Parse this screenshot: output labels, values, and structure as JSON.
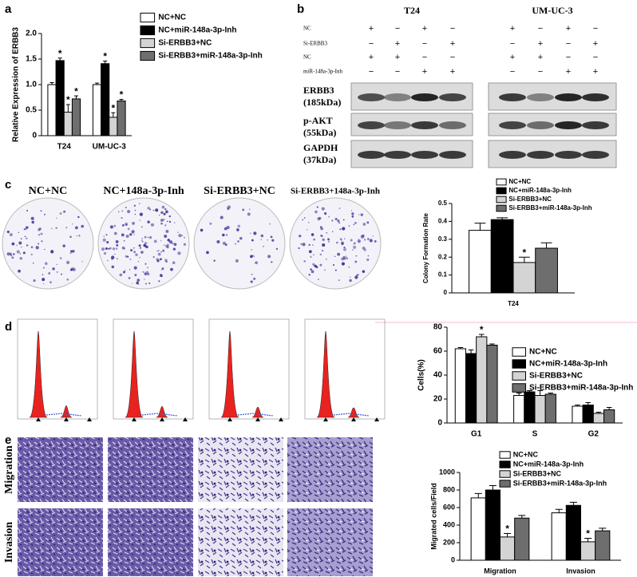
{
  "figure": {
    "panel_letters": [
      "a",
      "b",
      "c",
      "d",
      "e"
    ],
    "blot": {
      "cell_lines": [
        "T24",
        "UM-UC-3"
      ],
      "treatments": [
        {
          "name": "NC",
          "signs": [
            "+",
            "−",
            "+",
            "−"
          ]
        },
        {
          "name": "Si-ERBB3",
          "signs": [
            "−",
            "+",
            "−",
            "+"
          ]
        },
        {
          "name": "NC",
          "signs": [
            "+",
            "+",
            "−",
            "−"
          ]
        },
        {
          "name": "miR-148a-3p-Inh",
          "signs": [
            "−",
            "−",
            "+",
            "+"
          ]
        }
      ],
      "bands": [
        {
          "name": "ERBB3",
          "size": "(185kDa)"
        },
        {
          "name": "p-AKT",
          "size": "(55kDa)"
        },
        {
          "name": "GAPDH",
          "size": "(37kDa)"
        }
      ]
    },
    "colony_labels": [
      "NC+NC",
      "NC+148a-3p-Inh",
      "Si-ERBB3+NC",
      "Si-ERBB3+148a-3p-Inh"
    ],
    "assay_labels": [
      "Migration",
      "Invasion"
    ]
  },
  "chart_data": [
    {
      "type": "bar",
      "ylabel": "Relative Expression of ERBB3",
      "categories": [
        "T24",
        "UM-UC-3"
      ],
      "ylim": [
        0,
        2
      ],
      "yticks": [
        0,
        0.5,
        {
          "value": 1,
          "label": "1.0"
        },
        1.5,
        {
          "value": 2,
          "label": "2.0"
        }
      ],
      "series": [
        {
          "name": "NC+NC",
          "color": "#ffffff",
          "values": [
            1,
            1
          ],
          "errors": [
            0.04,
            0.03
          ]
        },
        {
          "name": "NC+miR-148a-3p-Inh",
          "color": "#000000",
          "values": [
            1.47,
            1.41
          ],
          "errors": [
            0.05,
            0.05
          ],
          "labels": [
            "*",
            "*"
          ]
        },
        {
          "name": "Si-ERBB3+NC",
          "color": "#d4d4d4",
          "values": [
            0.46,
            0.36
          ],
          "errors": [
            0.15,
            0.09
          ],
          "labels": [
            "*",
            "*"
          ]
        },
        {
          "name": "Si-ERBB3+miR-148a-3p-Inh",
          "color": "#6e6e6e",
          "values": [
            0.72,
            0.68
          ],
          "errors": [
            0.06,
            0.03
          ],
          "labels": [
            "*",
            "*"
          ]
        }
      ]
    },
    {
      "type": "bar",
      "ylabel": "Colony Formation Rate",
      "categories": [
        "T24"
      ],
      "ylim": [
        0,
        0.5
      ],
      "yticks": [
        0,
        0.1,
        0.2,
        0.3,
        0.4,
        0.5
      ],
      "series": [
        {
          "name": "NC+NC",
          "color": "#ffffff",
          "values": [
            0.35
          ],
          "errors": [
            0.04
          ]
        },
        {
          "name": "NC+miR-148a-3p-Inh",
          "color": "#000000",
          "values": [
            0.41
          ],
          "errors": [
            0.01
          ]
        },
        {
          "name": "Si-ERBB3+NC",
          "color": "#d4d4d4",
          "values": [
            0.17
          ],
          "errors": [
            0.03
          ],
          "labels": [
            "*"
          ]
        },
        {
          "name": "Si-ERBB3+miR-148a-3p-Inh",
          "color": "#6e6e6e",
          "values": [
            0.25
          ],
          "errors": [
            0.03
          ]
        }
      ]
    },
    {
      "type": "bar",
      "ylabel": "Cells(%)",
      "categories": [
        "G1",
        "S",
        "G2"
      ],
      "ylim": [
        0,
        80
      ],
      "yticks": [
        0,
        20,
        40,
        60,
        80
      ],
      "series": [
        {
          "name": "NC+NC",
          "color": "#ffffff",
          "values": [
            62,
            23,
            14
          ],
          "errors": [
            1,
            2,
            1
          ]
        },
        {
          "name": "NC+miR-148a-3p-Inh",
          "color": "#000000",
          "values": [
            58,
            26,
            15
          ],
          "errors": [
            3,
            1,
            2
          ]
        },
        {
          "name": "Si-ERBB3+NC",
          "color": "#d4d4d4",
          "values": [
            72,
            23,
            8
          ],
          "errors": [
            2,
            4,
            1
          ],
          "labels": [
            "*",
            null,
            null
          ]
        },
        {
          "name": "Si-ERBB3+miR-148a-3p-Inh",
          "color": "#6e6e6e",
          "values": [
            65,
            24,
            11
          ],
          "errors": [
            1,
            1,
            2
          ]
        }
      ]
    },
    {
      "type": "bar",
      "ylabel": "Migrated cells/Field",
      "categories": [
        "Migration",
        "Invasion"
      ],
      "ylim": [
        0,
        1000
      ],
      "yticks": [
        0,
        200,
        400,
        600,
        800,
        1000
      ],
      "series": [
        {
          "name": "NC+NC",
          "color": "#ffffff",
          "values": [
            710,
            540
          ],
          "errors": [
            50,
            40
          ]
        },
        {
          "name": "NC+miR-148a-3p-Inh",
          "color": "#000000",
          "values": [
            800,
            625
          ],
          "errors": [
            50,
            35
          ]
        },
        {
          "name": "Si-ERBB3+NC",
          "color": "#d4d4d4",
          "values": [
            265,
            210
          ],
          "errors": [
            40,
            40
          ],
          "labels": [
            "*",
            "*"
          ]
        },
        {
          "name": "Si-ERBB3+miR-148a-3p-Inh",
          "color": "#6e6e6e",
          "values": [
            480,
            335
          ],
          "errors": [
            30,
            30
          ]
        }
      ]
    }
  ]
}
